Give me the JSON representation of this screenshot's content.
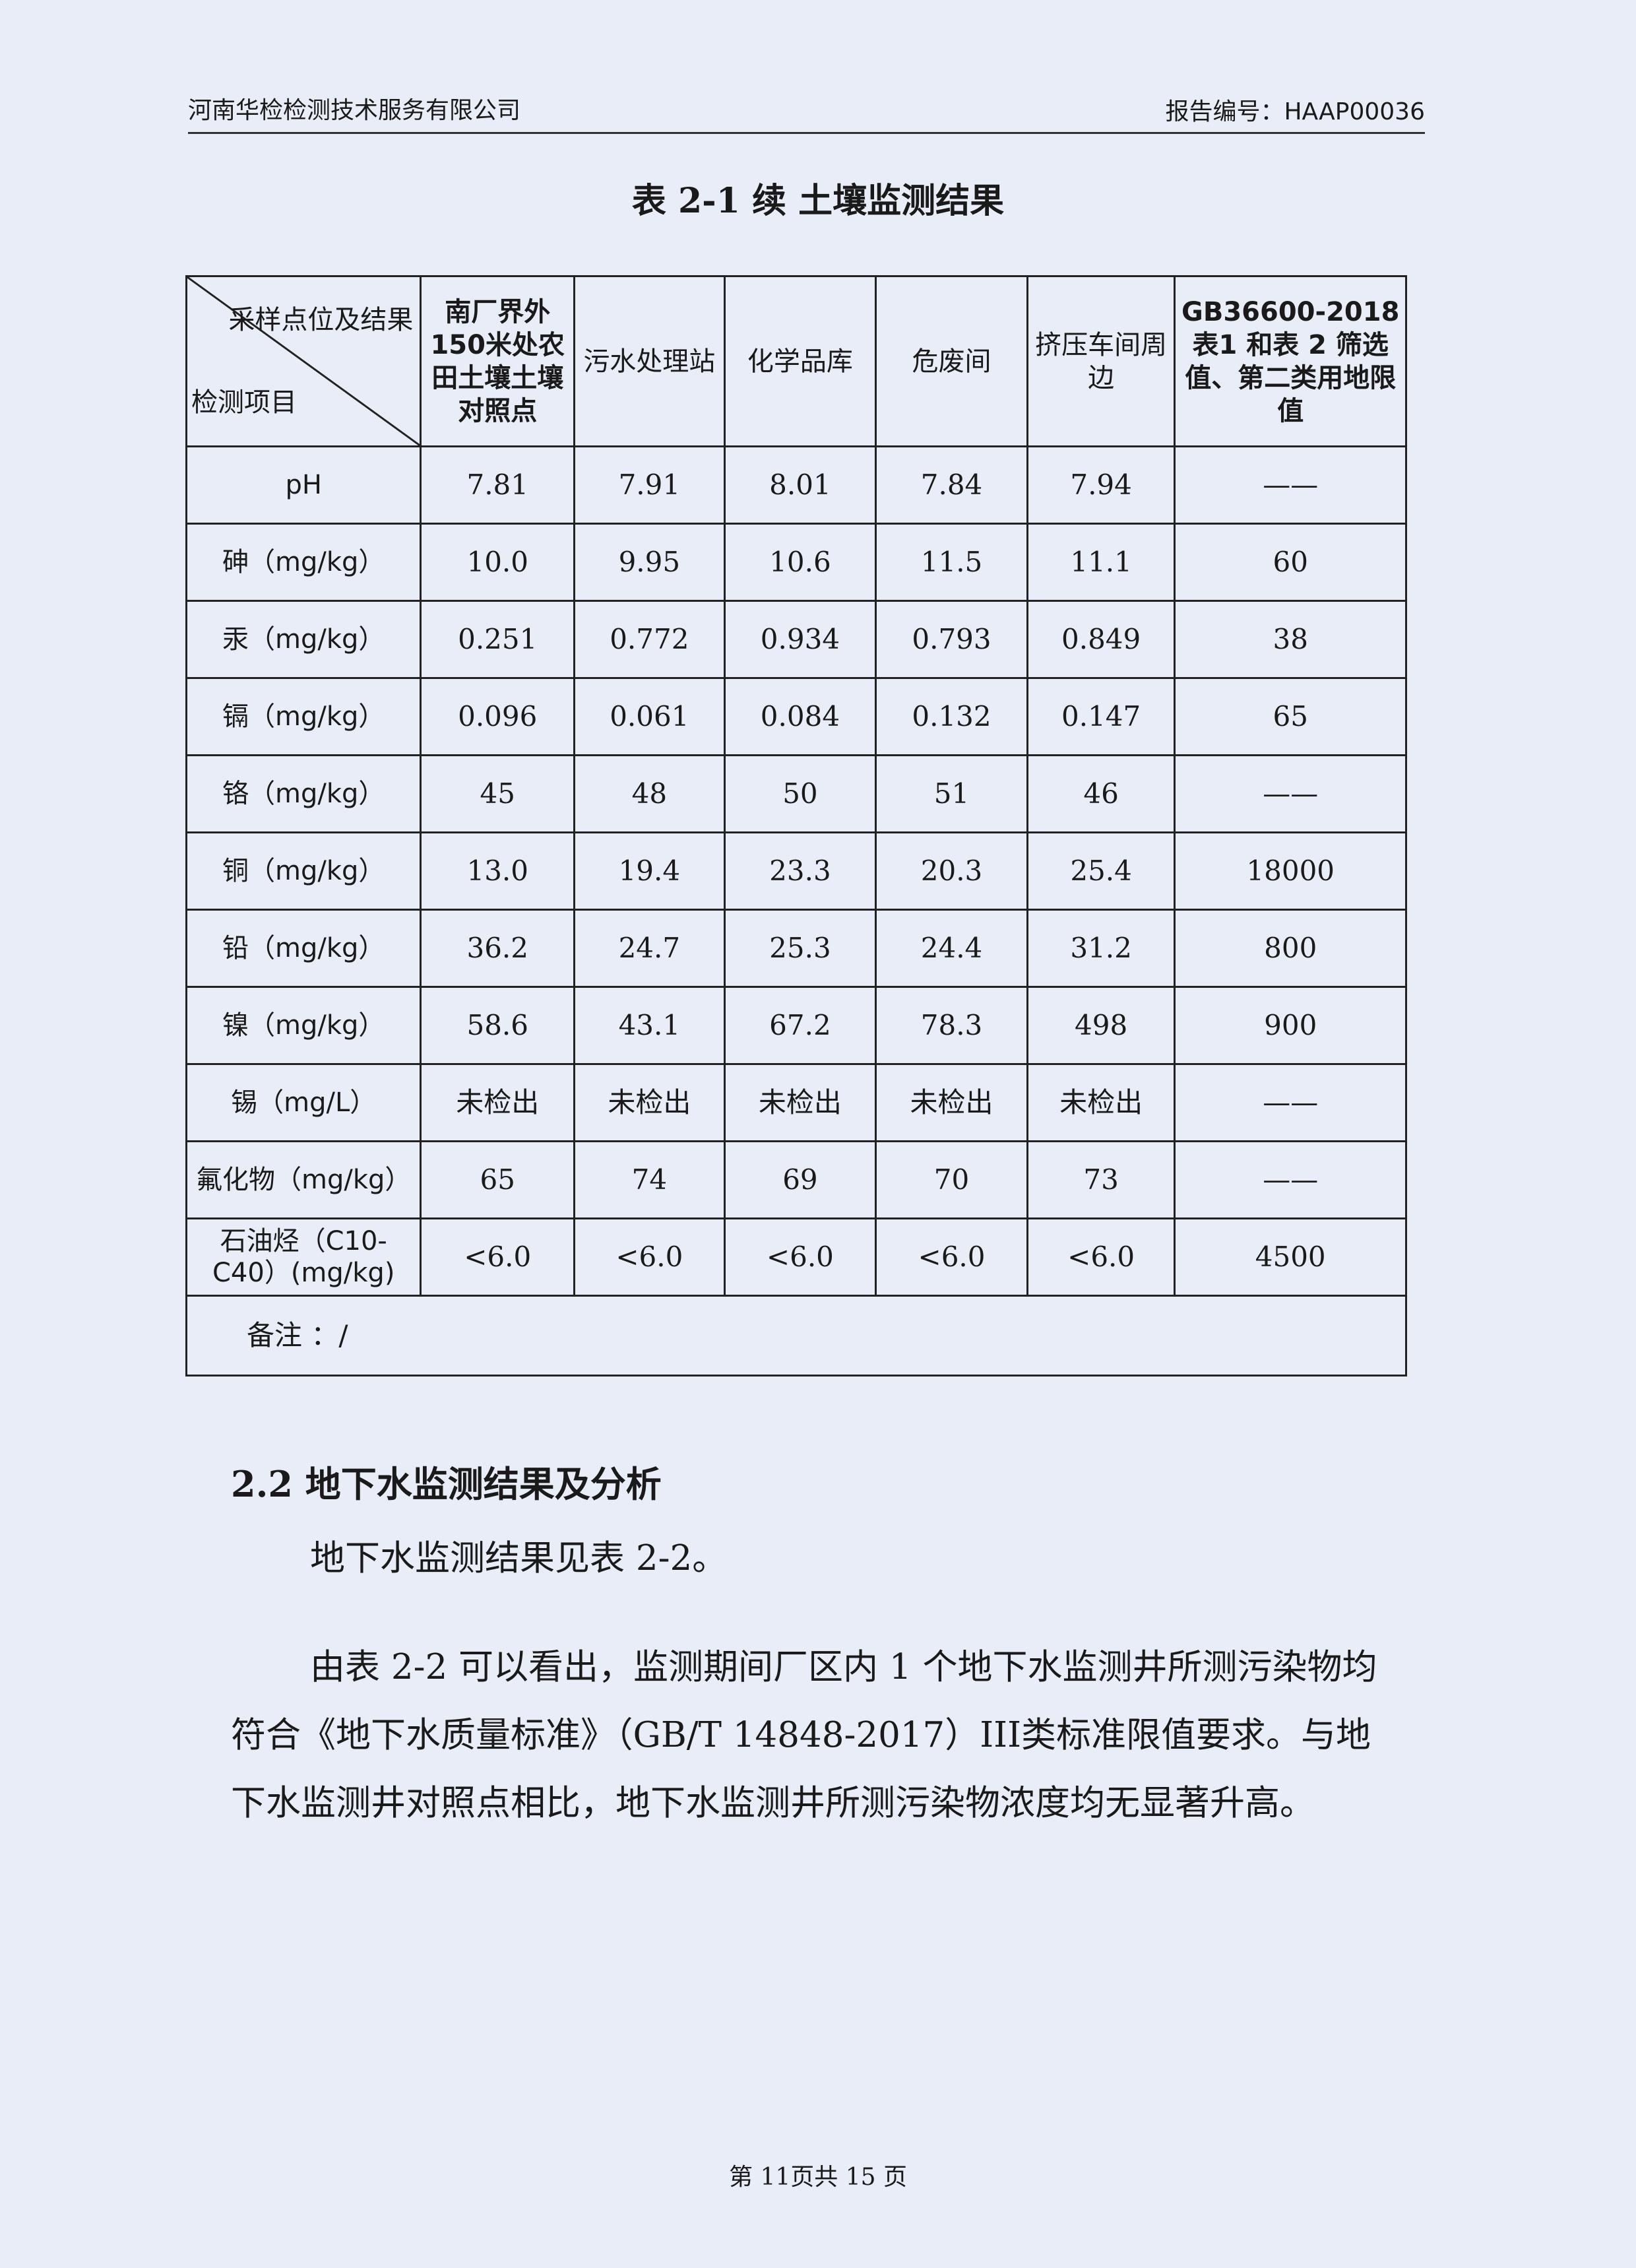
{
  "header": {
    "company": "河南华检检测技术服务有限公司",
    "report_no": "报告编号：HAAP00036"
  },
  "title": "表 2-1 续   土壤监测结果",
  "table": {
    "corner_top": "采样点位及结果",
    "corner_bottom": "检测项目",
    "columns": [
      "南厂界外150米处农田土壤土壤对照点",
      "污水处理站",
      "化学品库",
      "危废间",
      "挤压车间周边",
      "GB36600-2018 表1 和表 2 筛选值、第二类用地限值"
    ],
    "rows": [
      {
        "item": "pH",
        "values": [
          "7.81",
          "7.91",
          "8.01",
          "7.84",
          "7.94",
          "——"
        ]
      },
      {
        "item": "砷（mg/kg）",
        "values": [
          "10.0",
          "9.95",
          "10.6",
          "11.5",
          "11.1",
          "60"
        ]
      },
      {
        "item": "汞（mg/kg）",
        "values": [
          "0.251",
          "0.772",
          "0.934",
          "0.793",
          "0.849",
          "38"
        ]
      },
      {
        "item": "镉（mg/kg）",
        "values": [
          "0.096",
          "0.061",
          "0.084",
          "0.132",
          "0.147",
          "65"
        ]
      },
      {
        "item": "铬（mg/kg）",
        "values": [
          "45",
          "48",
          "50",
          "51",
          "46",
          "——"
        ]
      },
      {
        "item": "铜（mg/kg）",
        "values": [
          "13.0",
          "19.4",
          "23.3",
          "20.3",
          "25.4",
          "18000"
        ]
      },
      {
        "item": "铅（mg/kg）",
        "values": [
          "36.2",
          "24.7",
          "25.3",
          "24.4",
          "31.2",
          "800"
        ]
      },
      {
        "item": "镍（mg/kg）",
        "values": [
          "58.6",
          "43.1",
          "67.2",
          "78.3",
          "498",
          "900"
        ]
      },
      {
        "item": "锡（mg/L）",
        "values": [
          "未检出",
          "未检出",
          "未检出",
          "未检出",
          "未检出",
          "——"
        ]
      },
      {
        "item": "氟化物（mg/kg）",
        "values": [
          "65",
          "74",
          "69",
          "70",
          "73",
          "——"
        ]
      },
      {
        "item": "石油烃（C10-C40）(mg/kg)",
        "values": [
          "<6.0",
          "<6.0",
          "<6.0",
          "<6.0",
          "<6.0",
          "4500"
        ]
      }
    ],
    "note": "备注 ：/"
  },
  "section": {
    "heading": "2.2 地下水监测结果及分析",
    "para1": "地下水监测结果见表 2-2。",
    "para2": "由表 2-2 可以看出，监测期间厂区内 1 个地下水监测井所测污染物均符合《地下水质量标准》（GB/T 14848-2017）III类标准限值要求。与地下水监测井对照点相比，地下水监测井所测污染物浓度均无显著升高。"
  },
  "footer": {
    "page": "第 11页共  15  页"
  }
}
